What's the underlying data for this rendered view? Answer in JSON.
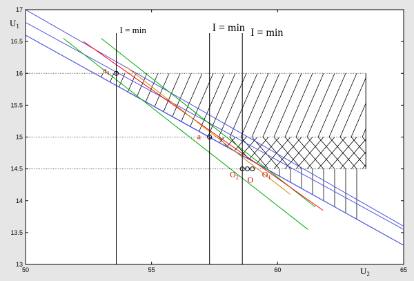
{
  "chart_data": {
    "type": "line",
    "title": "",
    "xlabel": "U",
    "xlabel_sub": "2",
    "ylabel": "U",
    "ylabel_sub": "1",
    "xlim": [
      50,
      65
    ],
    "ylim": [
      13,
      17
    ],
    "xticks": [
      50,
      55,
      60,
      65
    ],
    "yticks": [
      13,
      13.5,
      14,
      14.5,
      15,
      15.5,
      16,
      16.5,
      17
    ],
    "grid": false,
    "horizontal_levels": [
      14.5,
      15,
      16
    ],
    "vertical_lines": [
      53.6,
      57.3,
      58.6
    ],
    "vertical_line_labels": [
      {
        "text": "I = min",
        "x": 53.6
      },
      {
        "text": "I = min",
        "x": 57.3
      },
      {
        "text": "I = min",
        "x": 58.6
      }
    ],
    "series": [
      {
        "color": "#4a55e0",
        "x": [
          50,
          65
        ],
        "y": [
          17.0,
          13.6
        ]
      },
      {
        "color": "#4a55e0",
        "x": [
          50,
          65
        ],
        "y": [
          16.8,
          13.55
        ]
      },
      {
        "color": "#4a55e0",
        "x": [
          50,
          65
        ],
        "y": [
          16.6,
          13.3
        ]
      },
      {
        "color": "#4a55e0",
        "x": [
          50,
          57.3,
          65
        ],
        "y": [
          16.6,
          15.0,
          13.3
        ]
      },
      {
        "color": "#00aa00",
        "x": [
          51.5,
          61.2
        ],
        "y": [
          16.55,
          13.55
        ]
      },
      {
        "color": "#00aa00",
        "x": [
          53.0,
          61.5
        ],
        "y": [
          16.55,
          13.9
        ]
      },
      {
        "color": "#ff0000",
        "x": [
          52.3,
          61.8
        ],
        "y": [
          16.5,
          13.85
        ]
      },
      {
        "color": "#cc8800",
        "x": [
          54.0,
          60.5
        ],
        "y": [
          16.1,
          14.1
        ]
      }
    ],
    "points": [
      {
        "label": "a",
        "sub": "1",
        "x": 53.6,
        "y": 16.0
      },
      {
        "label": "a",
        "sub": "",
        "x": 57.3,
        "y": 15.0
      },
      {
        "label": "O",
        "sub": "2",
        "x": 58.6,
        "y": 14.5
      },
      {
        "label": "O",
        "sub": "",
        "x": 58.8,
        "y": 14.5
      },
      {
        "label": "O",
        "sub": "1",
        "x": 59.0,
        "y": 14.5
      }
    ],
    "hatch_regions": [
      {
        "style": "diagonal",
        "ymin": 15.0,
        "ymax": 16.0
      },
      {
        "style": "cross",
        "ymin": 14.5,
        "ymax": 15.0
      },
      {
        "style": "vertical",
        "ymin": 13.3,
        "ymax": 14.5
      }
    ]
  }
}
